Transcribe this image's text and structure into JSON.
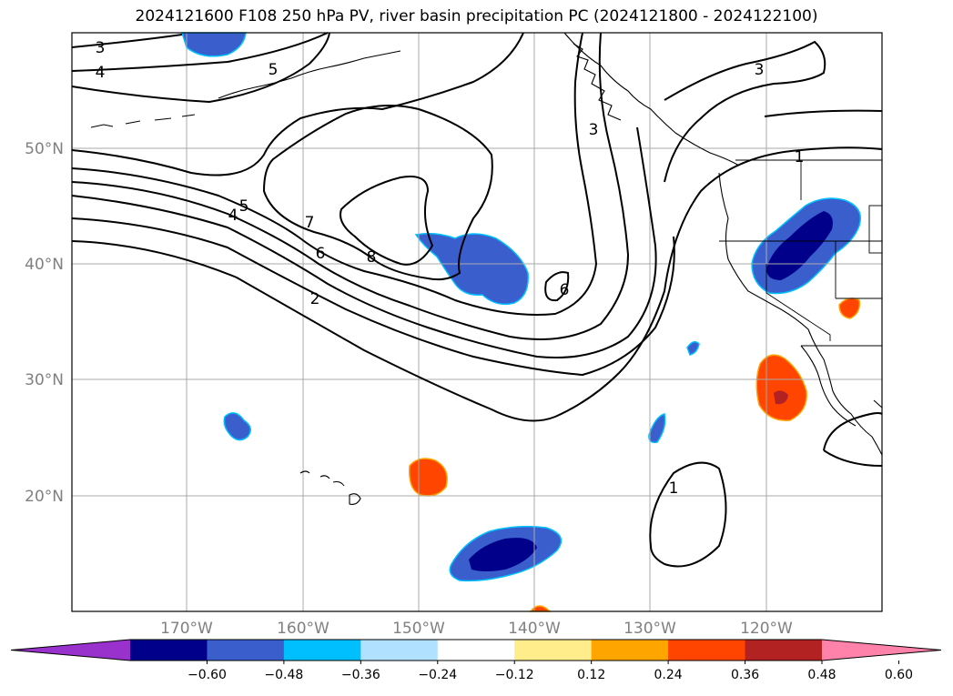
{
  "title": "2024121600 F108 250 hPa PV, river basin precipitation PC (2024121800 - 2024122100)",
  "map": {
    "lat_labels": [
      "50°N",
      "40°N",
      "30°N",
      "20°N"
    ],
    "lon_labels": [
      "170°W",
      "160°W",
      "150°W",
      "140°W",
      "130°W",
      "120°W"
    ],
    "label_color": "#808080",
    "contour_labels": [
      "3",
      "4",
      "5",
      "5",
      "4",
      "7",
      "6",
      "8",
      "2",
      "6",
      "3",
      "3",
      "1",
      "1"
    ]
  },
  "colorbar": {
    "ticks": [
      "−0.60",
      "−0.48",
      "−0.36",
      "−0.24",
      "−0.12",
      "0.12",
      "0.24",
      "0.36",
      "0.48",
      "0.60"
    ],
    "colors": [
      "#9932cc",
      "#00008b",
      "#3a5fcd",
      "#00bfff",
      "#b0e2ff",
      "#ffffff",
      "#ffec8b",
      "#ffa500",
      "#ff4500",
      "#b22222",
      "#ff82ab"
    ]
  }
}
